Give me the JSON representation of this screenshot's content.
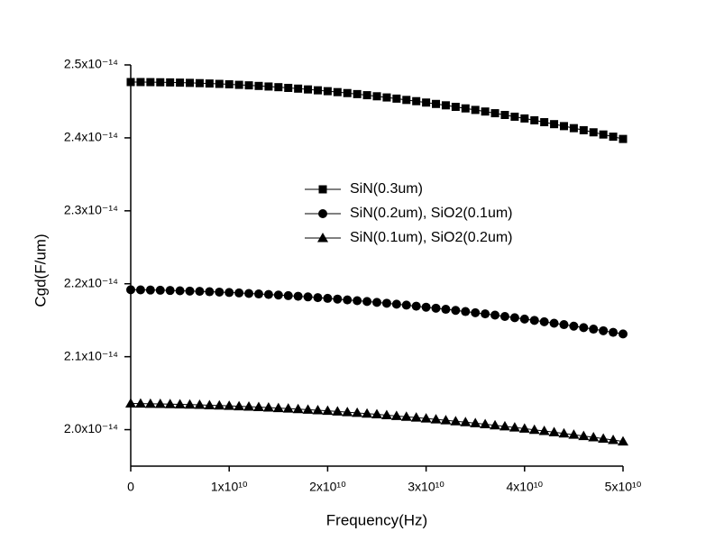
{
  "chart_data": {
    "type": "line",
    "x_label": "Frequency(Hz)",
    "y_label": "Cgd(F/um)",
    "x": [
      0,
      1000000000.0,
      2000000000.0,
      3000000000.0,
      4000000000.0,
      5000000000.0,
      6000000000.0,
      7000000000.0,
      8000000000.0,
      9000000000.0,
      10000000000.0,
      11000000000.0,
      12000000000.0,
      13000000000.0,
      14000000000.0,
      15000000000.0,
      16000000000.0,
      17000000000.0,
      18000000000.0,
      19000000000.0,
      20000000000.0,
      21000000000.0,
      22000000000.0,
      23000000000.0,
      24000000000.0,
      25000000000.0,
      26000000000.0,
      27000000000.0,
      28000000000.0,
      29000000000.0,
      30000000000.0,
      31000000000.0,
      32000000000.0,
      33000000000.0,
      34000000000.0,
      35000000000.0,
      36000000000.0,
      37000000000.0,
      38000000000.0,
      39000000000.0,
      40000000000.0,
      41000000000.0,
      42000000000.0,
      43000000000.0,
      44000000000.0,
      45000000000.0,
      46000000000.0,
      47000000000.0,
      48000000000.0,
      49000000000.0,
      50000000000.0
    ],
    "series": [
      {
        "name": "SiN(0.3um)",
        "color": "#000000",
        "marker": "square",
        "values": [
          2.4765e-14,
          2.4765e-14,
          2.4764e-14,
          2.4762e-14,
          2.476e-14,
          2.4757e-14,
          2.4754e-14,
          2.475e-14,
          2.4745e-14,
          2.474e-14,
          2.4734e-14,
          2.4727e-14,
          2.472e-14,
          2.4712e-14,
          2.4704e-14,
          2.4695e-14,
          2.4685e-14,
          2.4675e-14,
          2.4664e-14,
          2.4652e-14,
          2.464e-14,
          2.4627e-14,
          2.4614e-14,
          2.46e-14,
          2.4585e-14,
          2.457e-14,
          2.4554e-14,
          2.4538e-14,
          2.452e-14,
          2.4503e-14,
          2.4484e-14,
          2.4465e-14,
          2.4446e-14,
          2.4425e-14,
          2.4404e-14,
          2.4383e-14,
          2.4361e-14,
          2.4338e-14,
          2.4314e-14,
          2.429e-14,
          2.4266e-14,
          2.4241e-14,
          2.4215e-14,
          2.4188e-14,
          2.4161e-14,
          2.4133e-14,
          2.4105e-14,
          2.4076e-14,
          2.4046e-14,
          2.4016e-14,
          2.3985e-14
        ]
      },
      {
        "name": "SiN(0.2um), SiO2(0.1um)",
        "color": "#000000",
        "marker": "circle",
        "values": [
          2.1918e-14,
          2.1916e-14,
          2.1914e-14,
          2.1911e-14,
          2.1908e-14,
          2.1904e-14,
          2.19e-14,
          2.1896e-14,
          2.1891e-14,
          2.1886e-14,
          2.188e-14,
          2.1874e-14,
          2.1867e-14,
          2.186e-14,
          2.1853e-14,
          2.1845e-14,
          2.1837e-14,
          2.1829e-14,
          2.182e-14,
          2.181e-14,
          2.18e-14,
          2.179e-14,
          2.1779e-14,
          2.1768e-14,
          2.1757e-14,
          2.1745e-14,
          2.1733e-14,
          2.172e-14,
          2.1707e-14,
          2.1693e-14,
          2.1679e-14,
          2.1665e-14,
          2.165e-14,
          2.1635e-14,
          2.1619e-14,
          2.1603e-14,
          2.1587e-14,
          2.157e-14,
          2.1552e-14,
          2.1535e-14,
          2.1516e-14,
          2.1498e-14,
          2.1479e-14,
          2.1459e-14,
          2.144e-14,
          2.1419e-14,
          2.1399e-14,
          2.1378e-14,
          2.1356e-14,
          2.1334e-14,
          2.1312e-14
        ]
      },
      {
        "name": "SiN(0.1um), SiO2(0.2um)",
        "color": "#000000",
        "marker": "triangle",
        "values": [
          2.0359e-14,
          2.0357e-14,
          2.0355e-14,
          2.0353e-14,
          2.035e-14,
          2.0347e-14,
          2.0343e-14,
          2.034e-14,
          2.0335e-14,
          2.0331e-14,
          2.0326e-14,
          2.0321e-14,
          2.0315e-14,
          2.0309e-14,
          2.0303e-14,
          2.0296e-14,
          2.0289e-14,
          2.0282e-14,
          2.0274e-14,
          2.0266e-14,
          2.0258e-14,
          2.0249e-14,
          2.024e-14,
          2.023e-14,
          2.022e-14,
          2.021e-14,
          2.0199e-14,
          2.0188e-14,
          2.0177e-14,
          2.0166e-14,
          2.0154e-14,
          2.0141e-14,
          2.0129e-14,
          2.0115e-14,
          2.0102e-14,
          2.0088e-14,
          2.0074e-14,
          2.006e-14,
          2.0045e-14,
          2.003e-14,
          2.0014e-14,
          1.9998e-14,
          1.9982e-14,
          1.9965e-14,
          1.9948e-14,
          1.9931e-14,
          1.9913e-14,
          1.9895e-14,
          1.9877e-14,
          1.9858e-14,
          1.9839e-14
        ]
      }
    ],
    "xlim": [
      0,
      50000000000.0
    ],
    "xticks": [
      0,
      {
        "value": 10000000000.0,
        "label": "1x10¹⁰"
      },
      {
        "value": 20000000000.0,
        "label": "2x10¹⁰"
      },
      {
        "value": 30000000000.0,
        "label": "3x10¹⁰"
      },
      {
        "value": 40000000000.0,
        "label": "4x10¹⁰"
      },
      {
        "value": 50000000000.0,
        "label": "5x10¹⁰"
      }
    ],
    "ylim": [
      1.95e-14,
      2.5e-14
    ],
    "yticks": [
      {
        "value": 2e-14,
        "label": "2.0x10⁻¹⁴"
      },
      {
        "value": 2.1e-14,
        "label": "2.1x10⁻¹⁴"
      },
      {
        "value": 2.2e-14,
        "label": "2.2x10⁻¹⁴"
      },
      {
        "value": 2.3e-14,
        "label": "2.3x10⁻¹⁴"
      },
      {
        "value": 2.4e-14,
        "label": "2.4x10⁻¹⁴"
      },
      {
        "value": 2.5e-14,
        "label": "2.5x10⁻¹⁴"
      }
    ],
    "grid": false,
    "legend": "center"
  }
}
